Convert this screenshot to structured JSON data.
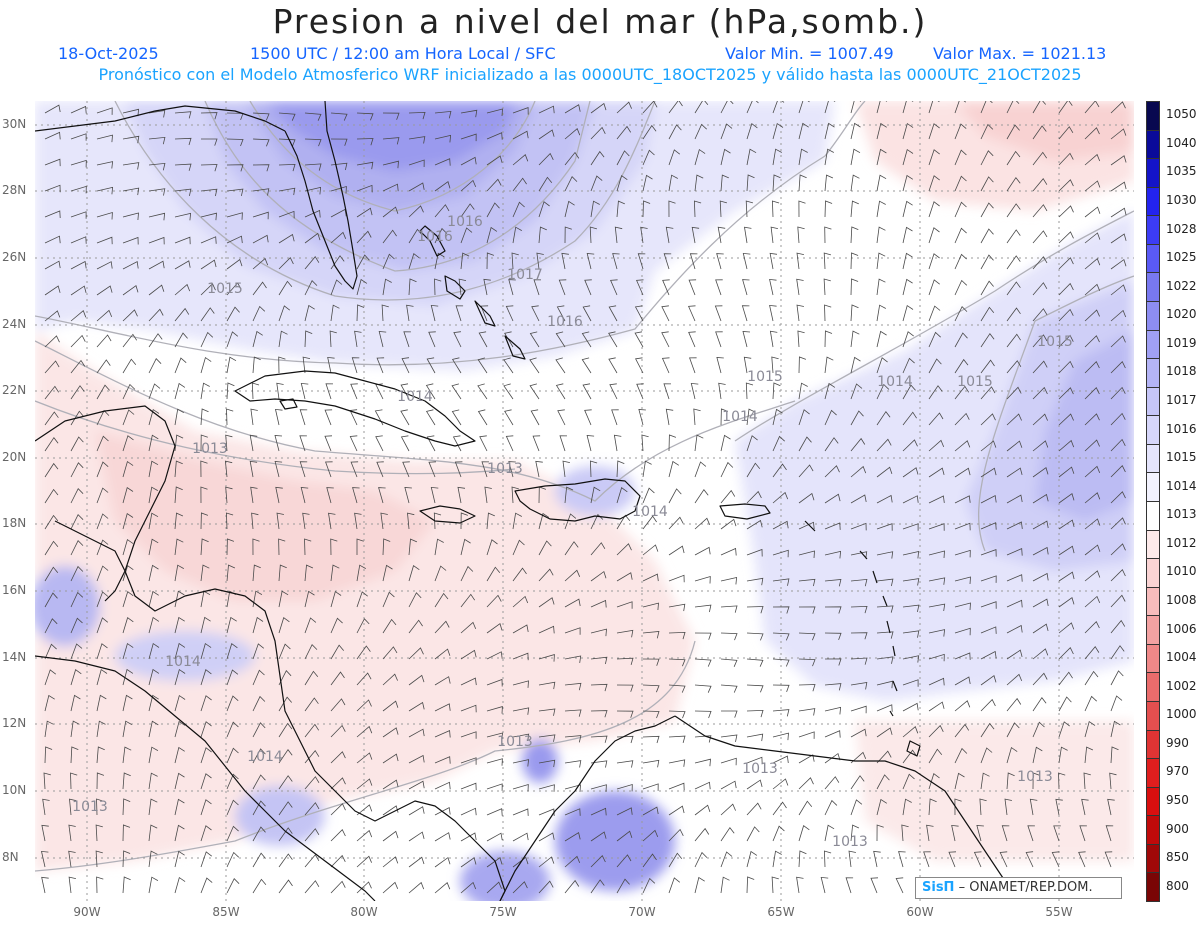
{
  "title": "Presion a nivel del mar (hPa,somb.)",
  "date": "18-Oct-2025",
  "time_label": "1500 UTC / 12:00 am Hora Local / SFC",
  "value_min": "Valor Min. = 1007.49",
  "value_max": "Valor Max. = 1021.13",
  "forecast_line": "Pronóstico con el Modelo Atmosferico WRF inicializado a las 0000UTC_18OCT2025 y válido hasta las  0000UTC_21OCT2025",
  "credit": {
    "brand": "SisΠ",
    "org": "– ONAMET/REP.DOM."
  },
  "lat_labels": [
    "30N",
    "28N",
    "26N",
    "24N",
    "22N",
    "20N",
    "18N",
    "16N",
    "14N",
    "12N",
    "10N",
    "8N"
  ],
  "lon_labels": [
    "90W",
    "85W",
    "80W",
    "75W",
    "70W",
    "65W",
    "60W",
    "55W"
  ],
  "colorbar": {
    "labels": [
      "1050",
      "1040",
      "1035",
      "1030",
      "1028",
      "1025",
      "1022",
      "1020",
      "1019",
      "1018",
      "1017",
      "1016",
      "1015",
      "1014",
      "1013",
      "1012",
      "1010",
      "1008",
      "1006",
      "1004",
      "1002",
      "1000",
      "990",
      "970",
      "950",
      "900",
      "850",
      "800"
    ],
    "colors": [
      "#080850",
      "#0a0a9a",
      "#1414c8",
      "#2323ee",
      "#3c3cf5",
      "#5a5af5",
      "#7878f0",
      "#8d8df2",
      "#a0a0f4",
      "#b4b4f6",
      "#c6c6f8",
      "#d6d6fa",
      "#e4e4fc",
      "#f2f2fe",
      "#ffffff",
      "#fdeaea",
      "#fad4d4",
      "#f7bcbc",
      "#f3a2a2",
      "#ef8888",
      "#ea6c6c",
      "#e44f4f",
      "#e03434",
      "#e01e1e",
      "#d90f0f",
      "#c00a0a",
      "#a00808",
      "#7a0505"
    ]
  },
  "contour_labels": [
    "1015",
    "1016",
    "1017",
    "1016",
    "1015",
    "1015",
    "1014",
    "1014",
    "1013",
    "1013",
    "1013",
    "1014",
    "1014",
    "1014",
    "1013",
    "1013",
    "1013",
    "1013",
    "1014",
    "1015",
    "1016"
  ]
}
